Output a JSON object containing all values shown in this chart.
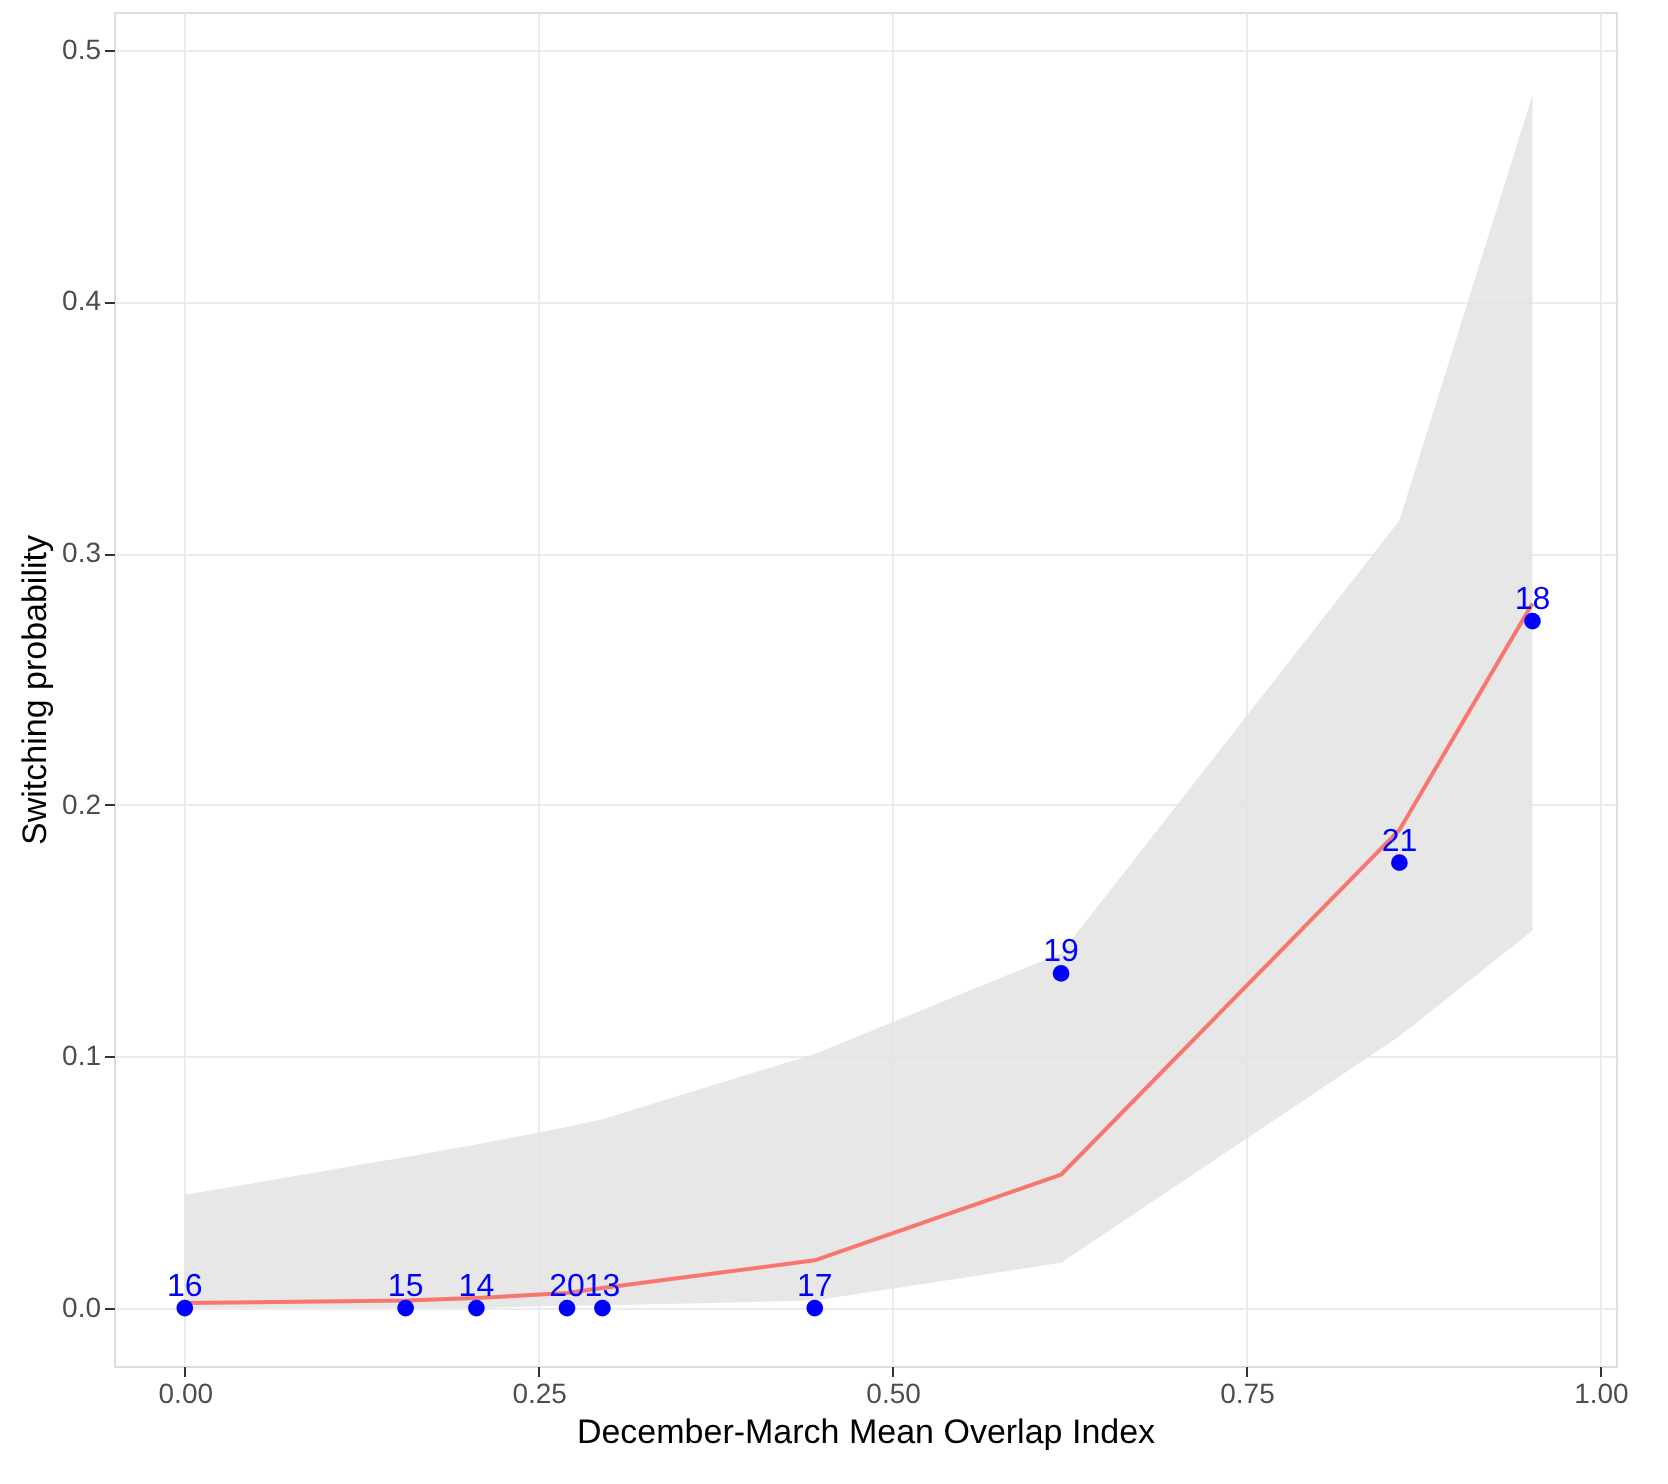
{
  "chart_data": {
    "type": "scatter",
    "xlabel": "December-March Mean Overlap Index",
    "ylabel": "Switching probability",
    "xlim": [
      -0.05,
      1.011
    ],
    "ylim": [
      -0.023,
      0.515
    ],
    "xticks": [
      {
        "value": 0,
        "label": "0.00"
      },
      {
        "value": 0.25,
        "label": "0.25"
      },
      {
        "value": 0.5,
        "label": "0.50"
      },
      {
        "value": 0.75,
        "label": "0.75"
      },
      {
        "value": 1,
        "label": "1.00"
      }
    ],
    "yticks": [
      {
        "value": 0,
        "label": "0.0"
      },
      {
        "value": 0.1,
        "label": "0.1"
      },
      {
        "value": 0.2,
        "label": "0.2"
      },
      {
        "value": 0.3,
        "label": "0.3"
      },
      {
        "value": 0.4,
        "label": "0.4"
      },
      {
        "value": 0.5,
        "label": "0.5"
      }
    ],
    "grid": true,
    "annotations": [
      {
        "text": "16",
        "x": 0,
        "y": 0
      },
      {
        "text": "15",
        "x": 0.156,
        "y": 0
      },
      {
        "text": "14",
        "x": 0.206,
        "y": 0
      },
      {
        "text": "20",
        "x": 0.27,
        "y": 0
      },
      {
        "text": "13",
        "x": 0.295,
        "y": 0
      },
      {
        "text": "17",
        "x": 0.445,
        "y": 0
      },
      {
        "text": "19",
        "x": 0.619,
        "y": 0.133
      },
      {
        "text": "21",
        "x": 0.858,
        "y": 0.177
      },
      {
        "text": "18",
        "x": 0.952,
        "y": 0.273
      }
    ],
    "series": [
      {
        "type": "line",
        "color": "#f8766d",
        "x": [
          0,
          0.156,
          0.206,
          0.27,
          0.295,
          0.445,
          0.619,
          0.858,
          0.952
        ],
        "values": [
          0.002,
          0.003,
          0.004,
          0.006,
          0.008,
          0.019,
          0.053,
          0.19,
          0.28
        ],
        "lower": [
          0,
          0,
          0,
          0.001,
          0.001,
          0.003,
          0.018,
          0.108,
          0.15
        ],
        "upper": [
          0.045,
          0.06,
          0.065,
          0.072,
          0.075,
          0.101,
          0.141,
          0.313,
          0.482
        ],
        "line_style": "solid",
        "marker": "none"
      },
      {
        "color": "#0000ff",
        "marker": "circle",
        "x": [
          0,
          0.156,
          0.206,
          0.27,
          0.295,
          0.445,
          0.619,
          0.858,
          0.952
        ],
        "values": [
          0,
          0,
          0,
          0,
          0,
          0,
          0.133,
          0.177,
          0.273
        ]
      }
    ]
  }
}
